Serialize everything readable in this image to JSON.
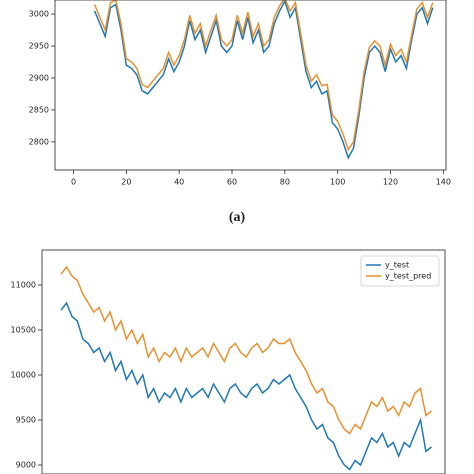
{
  "caption": "(a)",
  "chart_data": [
    {
      "type": "line",
      "x": [
        8,
        10,
        12,
        14,
        16,
        18,
        20,
        22,
        24,
        26,
        28,
        30,
        32,
        34,
        36,
        38,
        40,
        42,
        44,
        46,
        48,
        50,
        52,
        54,
        56,
        58,
        60,
        62,
        64,
        66,
        68,
        70,
        72,
        74,
        76,
        78,
        80,
        82,
        84,
        86,
        88,
        90,
        92,
        94,
        96,
        98,
        100,
        102,
        104,
        106,
        108,
        110,
        112,
        114,
        116,
        118,
        120,
        122,
        124,
        126,
        128,
        130,
        132,
        134,
        136
      ],
      "series": [
        {
          "color": "#1f77b4",
          "values": [
            3005,
            2985,
            2965,
            3010,
            3015,
            2975,
            2920,
            2915,
            2905,
            2880,
            2875,
            2885,
            2895,
            2905,
            2930,
            2910,
            2925,
            2950,
            2990,
            2960,
            2975,
            2940,
            2965,
            2990,
            2950,
            2940,
            2950,
            2990,
            2960,
            2995,
            2955,
            2975,
            2940,
            2950,
            2985,
            3005,
            3020,
            2995,
            3010,
            2960,
            2910,
            2885,
            2895,
            2875,
            2880,
            2830,
            2820,
            2800,
            2775,
            2790,
            2840,
            2900,
            2940,
            2950,
            2940,
            2910,
            2945,
            2925,
            2935,
            2915,
            2960,
            3000,
            3010,
            2985,
            3010
          ]
        },
        {
          "color": "#e8912e",
          "values": [
            3015,
            2995,
            2975,
            3018,
            3022,
            2985,
            2930,
            2925,
            2915,
            2890,
            2885,
            2895,
            2905,
            2915,
            2940,
            2920,
            2935,
            2960,
            2998,
            2970,
            2985,
            2950,
            2975,
            2998,
            2960,
            2950,
            2960,
            2998,
            2970,
            3003,
            2965,
            2985,
            2950,
            2960,
            2995,
            3013,
            3025,
            3005,
            3018,
            2970,
            2920,
            2895,
            2905,
            2888,
            2890,
            2842,
            2832,
            2812,
            2788,
            2800,
            2850,
            2910,
            2948,
            2958,
            2950,
            2920,
            2953,
            2935,
            2945,
            2925,
            2968,
            3008,
            3018,
            2995,
            3018
          ]
        }
      ],
      "xlim": [
        -7,
        141
      ],
      "xticks": [
        0,
        20,
        40,
        60,
        80,
        100,
        120,
        140
      ],
      "ylim": [
        2756,
        3022
      ],
      "yticks": [
        2800,
        2850,
        2900,
        2950,
        3000
      ]
    },
    {
      "type": "line",
      "x": [
        0,
        2,
        4,
        6,
        8,
        10,
        12,
        14,
        16,
        18,
        20,
        22,
        24,
        26,
        28,
        30,
        32,
        34,
        36,
        38,
        40,
        42,
        44,
        46,
        48,
        50,
        52,
        54,
        56,
        58,
        60,
        62,
        64,
        66,
        68,
        70,
        72,
        74,
        76,
        78,
        80,
        82,
        84,
        86,
        88,
        90,
        92,
        94,
        96,
        98,
        100,
        102,
        104,
        106,
        108,
        110,
        112,
        114,
        116,
        118,
        120,
        122,
        124,
        126,
        128,
        130,
        132,
        134,
        136
      ],
      "series": [
        {
          "name": "y_test",
          "color": "#1f77b4",
          "values": [
            10720,
            10800,
            10650,
            10600,
            10400,
            10350,
            10250,
            10300,
            10150,
            10250,
            10050,
            10150,
            9950,
            10050,
            9900,
            10000,
            9750,
            9850,
            9700,
            9800,
            9750,
            9850,
            9700,
            9850,
            9750,
            9800,
            9850,
            9750,
            9900,
            9800,
            9700,
            9850,
            9900,
            9800,
            9750,
            9850,
            9900,
            9800,
            9850,
            9950,
            9900,
            9950,
            10000,
            9850,
            9750,
            9650,
            9500,
            9400,
            9450,
            9300,
            9250,
            9100,
            9000,
            8950,
            9050,
            9000,
            9150,
            9300,
            9250,
            9350,
            9200,
            9250,
            9100,
            9250,
            9200,
            9350,
            9500,
            9150,
            9200
          ]
        },
        {
          "name": "y_test_pred",
          "color": "#e8912e",
          "values": [
            11120,
            11200,
            11100,
            11050,
            10900,
            10800,
            10700,
            10750,
            10600,
            10700,
            10500,
            10600,
            10400,
            10500,
            10350,
            10450,
            10200,
            10300,
            10150,
            10250,
            10200,
            10300,
            10150,
            10300,
            10200,
            10250,
            10300,
            10200,
            10350,
            10250,
            10150,
            10300,
            10350,
            10250,
            10200,
            10300,
            10350,
            10250,
            10300,
            10400,
            10350,
            10350,
            10400,
            10250,
            10150,
            10050,
            9900,
            9800,
            9850,
            9700,
            9650,
            9500,
            9400,
            9350,
            9450,
            9400,
            9550,
            9700,
            9650,
            9750,
            9600,
            9650,
            9550,
            9700,
            9650,
            9800,
            9850,
            9550,
            9600
          ]
        }
      ],
      "xlim": [
        -7,
        141
      ],
      "ylim": [
        8900,
        11389
      ],
      "yticks": [
        9000,
        9500,
        10000,
        10500,
        11000
      ],
      "legend": "upper right"
    }
  ]
}
